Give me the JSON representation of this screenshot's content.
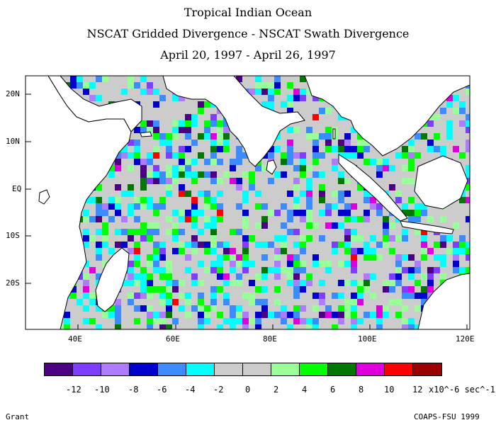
{
  "header": {
    "title": "Tropical Indian Ocean",
    "subtitle": "NSCAT Gridded Divergence - NSCAT Swath Divergence",
    "dates": "April 20, 1997 - April 26, 1997"
  },
  "map": {
    "lat_labels": [
      "20N",
      "10N",
      "EQ",
      "10S",
      "20S"
    ],
    "lon_labels": [
      "40E",
      "60E",
      "80E",
      "100E",
      "120E"
    ],
    "region": "Tropical Indian Ocean",
    "land_color": "#ffffff",
    "coast_color": "#000000"
  },
  "colorbar": {
    "colors": [
      "#4b0082",
      "#7f3dff",
      "#b07cff",
      "#0000cd",
      "#3c8cff",
      "#00ffff",
      "#cccccc",
      "#cccccc",
      "#99ff99",
      "#00ff00",
      "#007700",
      "#dd00dd",
      "#ff0000",
      "#990000"
    ],
    "tick_labels": [
      "-12",
      "-10",
      "-8",
      "-6",
      "-4",
      "-2",
      "0",
      "2",
      "4",
      "6",
      "8",
      "10",
      "12"
    ],
    "units": "x10^-6 sec^-1"
  },
  "footer": {
    "left": "Grant",
    "right": "COAPS-FSU 1999"
  }
}
